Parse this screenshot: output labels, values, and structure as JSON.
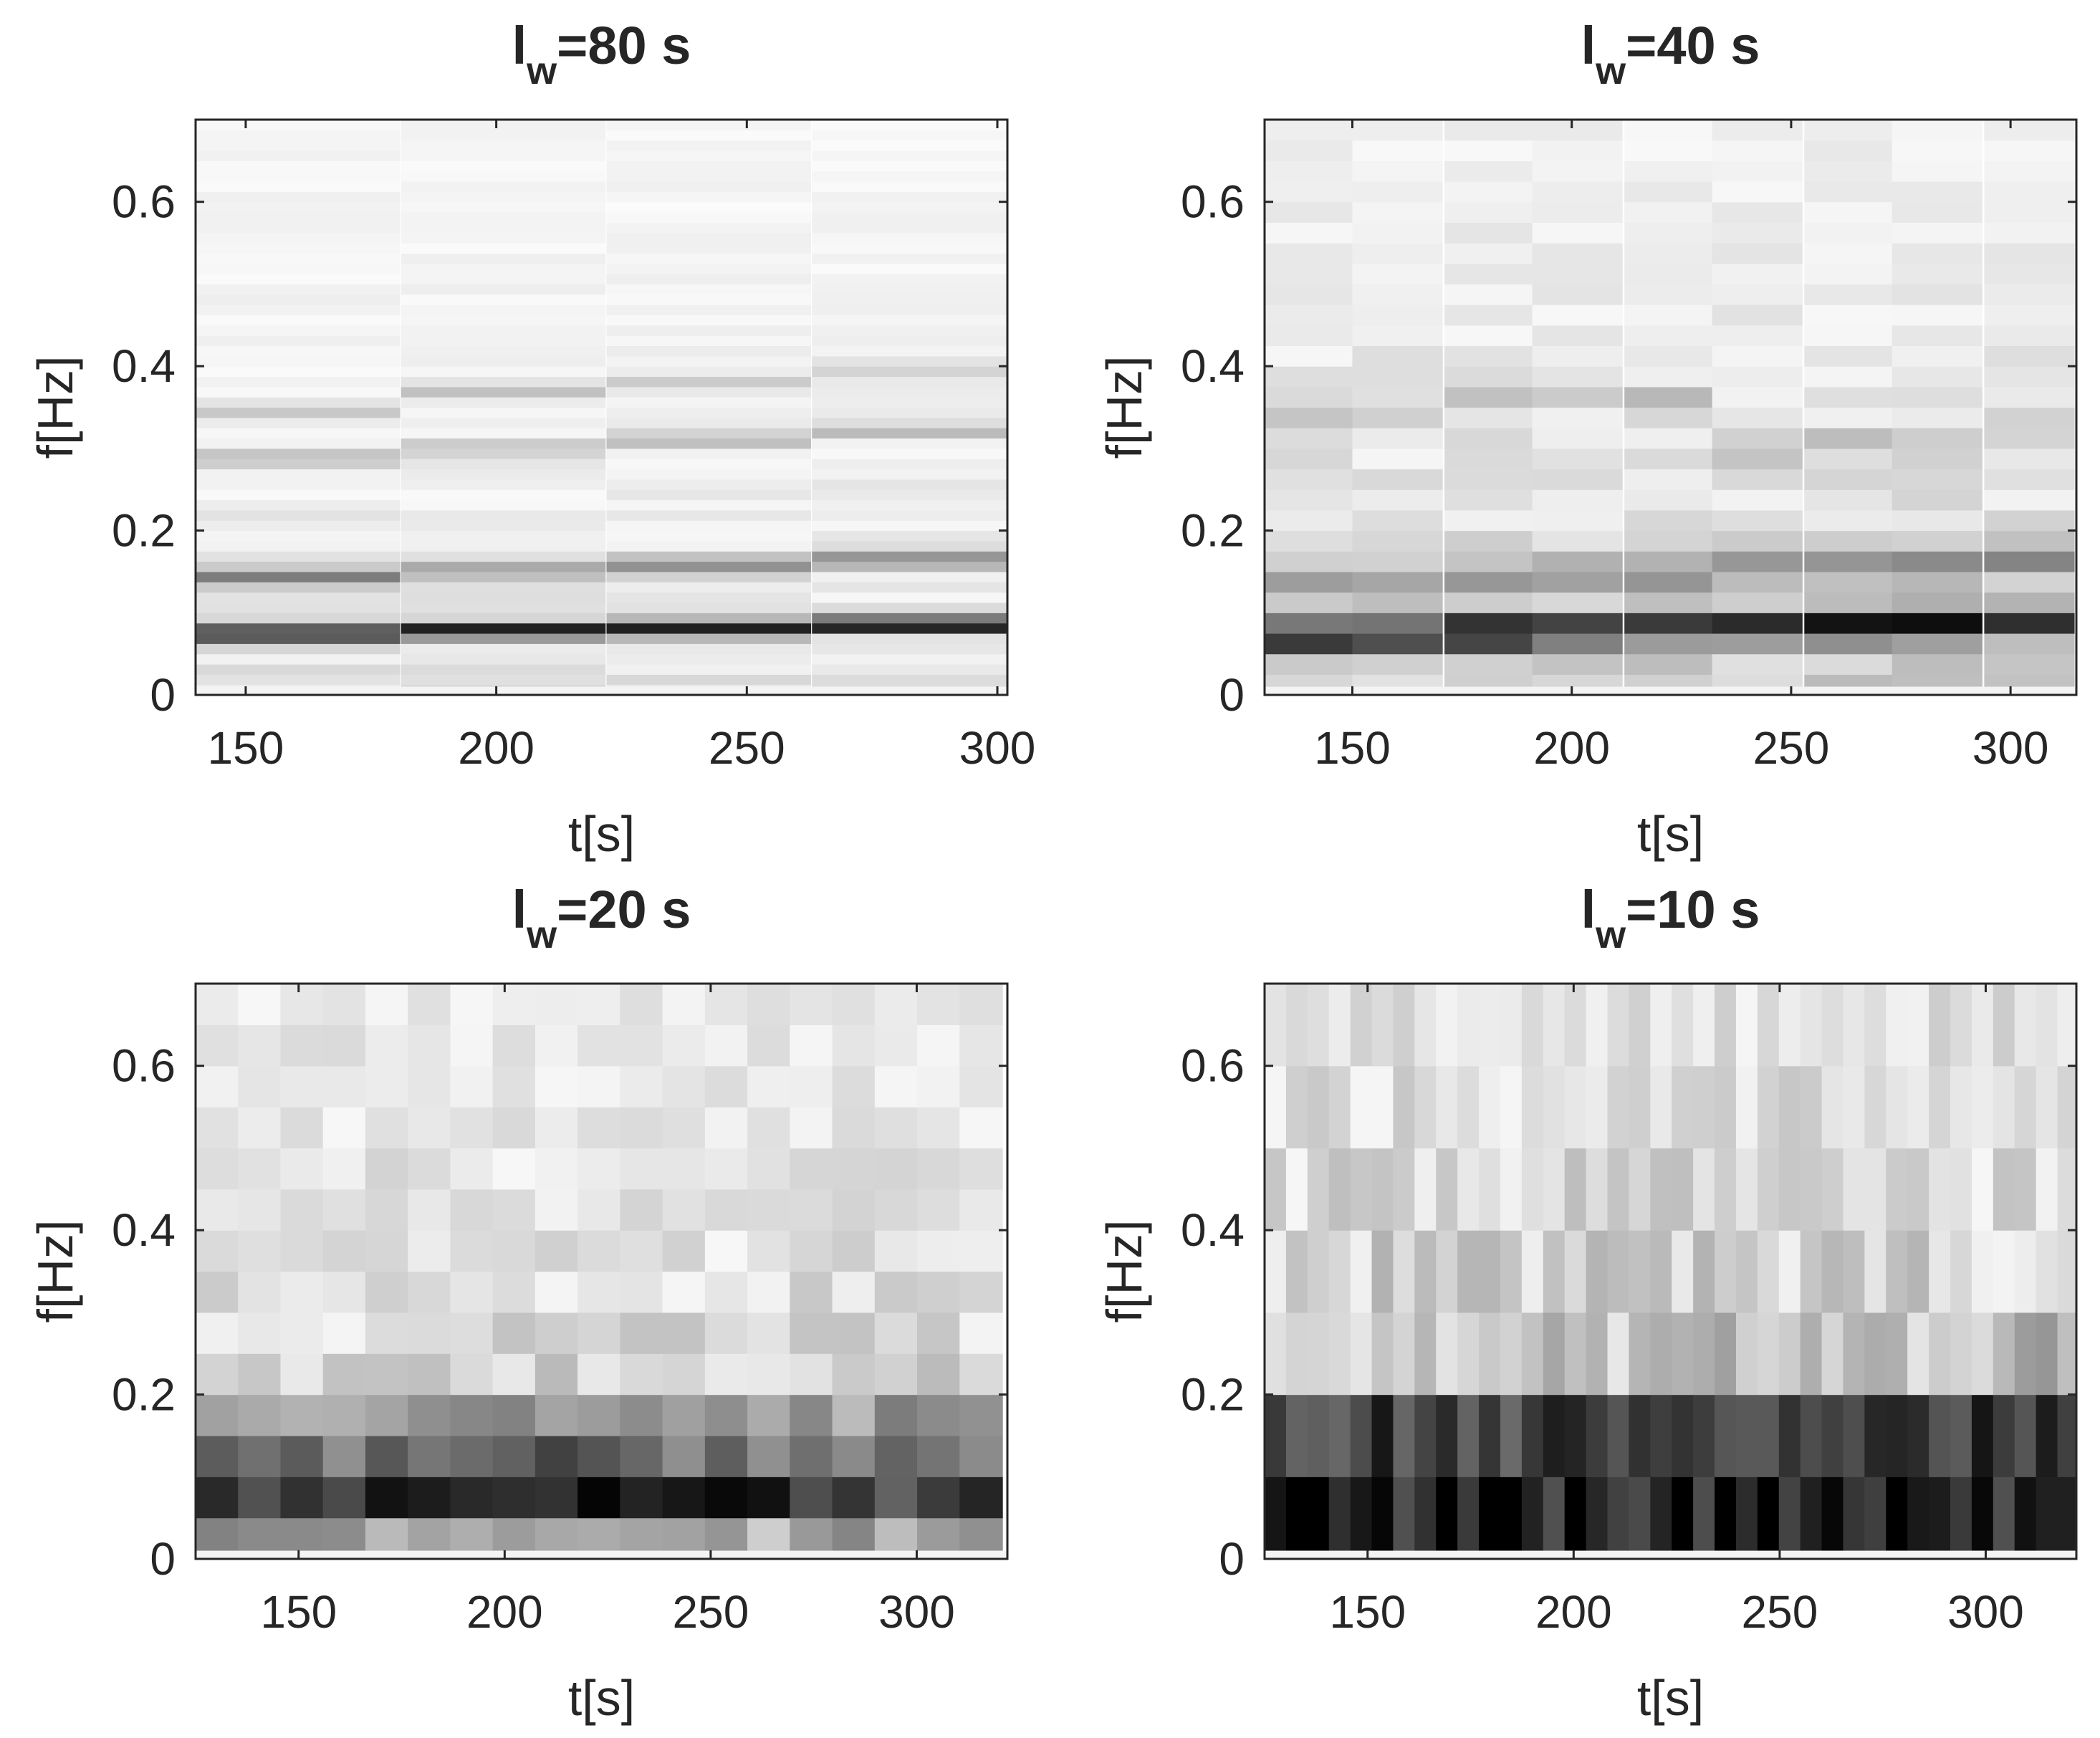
{
  "chart_data": [
    {
      "type": "heatmap",
      "title": {
        "main": "l",
        "sub": "w",
        "suffix": "=80 s"
      },
      "xlabel": "t[s]",
      "ylabel": "f[Hz]",
      "xlim": [
        140,
        302
      ],
      "ylim": [
        0,
        0.7
      ],
      "xticks": [
        150,
        200,
        250,
        300
      ],
      "yticks": [
        0,
        0.2,
        0.4,
        0.6
      ],
      "colormap": {
        "low": "#ffffff",
        "high": "#000000"
      },
      "window_s": 80,
      "columns_t": [
        140,
        181,
        222,
        263
      ],
      "column_width_s": 40.75,
      "freq_resolution_hz": 0.0125,
      "ridges": [
        {
          "f": [
            0.075,
            0.079,
            0.082,
            0.085
          ],
          "intensity": 0.95,
          "width_hz": 0.007
        },
        {
          "f": [
            0.145,
            0.152,
            0.159,
            0.165
          ],
          "intensity": 0.45,
          "width_hz": 0.008
        },
        {
          "f": [
            0.345,
            0.37,
            0.382,
            0.395
          ],
          "intensity": 0.18,
          "width_hz": 0.008
        },
        {
          "f": [
            0.29,
            0.3,
            0.31,
            0.322
          ],
          "intensity": 0.25,
          "width_hz": 0.007
        }
      ],
      "background": {
        "low_f_level": 0.12,
        "high_f_level": 0.03,
        "noise": 0.06
      }
    },
    {
      "type": "heatmap",
      "title": {
        "main": "l",
        "sub": "w",
        "suffix": "=40 s"
      },
      "xlabel": "t[s]",
      "ylabel": "f[Hz]",
      "xlim": [
        130,
        315
      ],
      "ylim": [
        0,
        0.7
      ],
      "xticks": [
        150,
        200,
        250,
        300
      ],
      "yticks": [
        0,
        0.2,
        0.4,
        0.6
      ],
      "colormap": {
        "low": "#ffffff",
        "high": "#000000"
      },
      "window_s": 40,
      "columns_t": [
        130,
        150,
        171,
        191,
        212,
        232,
        253,
        273,
        294
      ],
      "column_width_s": 20.5,
      "freq_resolution_hz": 0.025,
      "ridges": [
        {
          "f": [
            0.072,
            0.075,
            0.077,
            0.079,
            0.08,
            0.082,
            0.083,
            0.084,
            0.086
          ],
          "intensity": 0.85,
          "width_hz": 0.014
        },
        {
          "f": [
            0.138,
            0.14,
            0.143,
            0.146,
            0.15,
            0.155,
            0.158,
            0.162,
            0.166
          ],
          "intensity": 0.35,
          "width_hz": 0.014
        },
        {
          "f": [
            0.33,
            0.345,
            0.36,
            0.37,
            0.36,
            0.3,
            0.31,
            0.315,
            0.322
          ],
          "intensity": 0.18,
          "width_hz": 0.014
        }
      ],
      "background": {
        "low_f_level": 0.2,
        "high_f_level": 0.05,
        "noise": 0.1
      }
    },
    {
      "type": "heatmap",
      "title": {
        "main": "l",
        "sub": "w",
        "suffix": "=20 s"
      },
      "xlabel": "t[s]",
      "ylabel": "f[Hz]",
      "xlim": [
        125,
        322
      ],
      "ylim": [
        0,
        0.7
      ],
      "xticks": [
        150,
        200,
        250,
        300
      ],
      "yticks": [
        0,
        0.2,
        0.4,
        0.6
      ],
      "colormap": {
        "low": "#ffffff",
        "high": "#000000"
      },
      "window_s": 20,
      "columns_t": [
        125,
        135.3,
        145.6,
        155.9,
        166.2,
        176.5,
        186.8,
        197.1,
        207.4,
        217.7,
        228,
        238.3,
        248.6,
        258.9,
        269.2,
        279.5,
        289.8,
        300.1,
        310.4
      ],
      "column_width_s": 10.4,
      "freq_resolution_hz": 0.05,
      "ridges": [
        {
          "f": [
            0.08,
            0.08,
            0.08,
            0.08,
            0.08,
            0.085,
            0.085,
            0.085,
            0.09,
            0.09,
            0.085,
            0.08,
            0.085,
            0.085,
            0.09,
            0.085,
            0.09,
            0.09,
            0.09
          ],
          "intensity": 0.75,
          "width_hz": 0.03
        },
        {
          "f": [
            0.15,
            0.15,
            0.15,
            0.15,
            0.15,
            0.155,
            0.155,
            0.155,
            0.16,
            0.16,
            0.16,
            0.16,
            0.16,
            0.165,
            0.165,
            0.165,
            0.17,
            0.17,
            0.17
          ],
          "intensity": 0.3,
          "width_hz": 0.025
        }
      ],
      "background": {
        "low_f_level": 0.28,
        "high_f_level": 0.07,
        "noise": 0.16
      }
    },
    {
      "type": "heatmap",
      "title": {
        "main": "l",
        "sub": "w",
        "suffix": "=10 s"
      },
      "xlabel": "t[s]",
      "ylabel": "f[Hz]",
      "xlim": [
        125,
        322
      ],
      "ylim": [
        0,
        0.7
      ],
      "xticks": [
        150,
        200,
        250,
        300
      ],
      "yticks": [
        0,
        0.2,
        0.4,
        0.6
      ],
      "colormap": {
        "low": "#ffffff",
        "high": "#000000"
      },
      "window_s": 10,
      "columns_t": [
        125,
        130.2,
        135.4,
        140.6,
        145.8,
        151,
        156.2,
        161.4,
        166.6,
        171.8,
        177,
        182.2,
        187.4,
        192.6,
        197.8,
        203,
        208.2,
        213.4,
        218.6,
        223.8,
        229,
        234.2,
        239.4,
        244.6,
        249.8,
        255,
        260.2,
        265.4,
        270.6,
        275.8,
        281,
        286.2,
        291.4,
        296.6,
        301.8,
        307,
        312.2,
        317.4
      ],
      "column_width_s": 5.2,
      "freq_resolution_hz": 0.1,
      "ridges": [
        {
          "f": [
            0.09,
            0.09,
            0.09,
            0.09,
            0.09,
            0.09,
            0.09,
            0.09,
            0.09,
            0.09,
            0.09,
            0.09,
            0.09,
            0.09,
            0.09,
            0.09,
            0.09,
            0.09,
            0.09,
            0.09,
            0.09,
            0.09,
            0.09,
            0.09,
            0.09,
            0.09,
            0.09,
            0.09,
            0.09,
            0.09,
            0.09,
            0.09,
            0.09,
            0.09,
            0.09,
            0.09,
            0.09,
            0.09
          ],
          "intensity": 0.8,
          "width_hz": 0.07
        }
      ],
      "background": {
        "low_f_level": 0.38,
        "high_f_level": 0.1,
        "noise": 0.24
      }
    }
  ]
}
